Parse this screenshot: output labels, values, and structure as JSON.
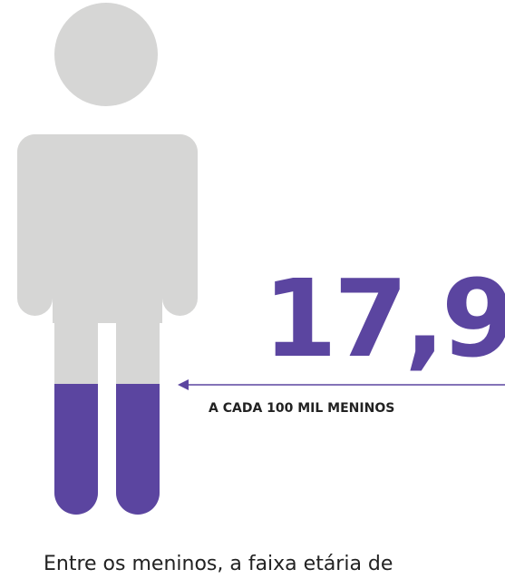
{
  "figure": {
    "value": "17,9",
    "caption": "A CADA 100 MIL MENINOS",
    "text": "Entre os meninos, a faixa etária de"
  }
}
